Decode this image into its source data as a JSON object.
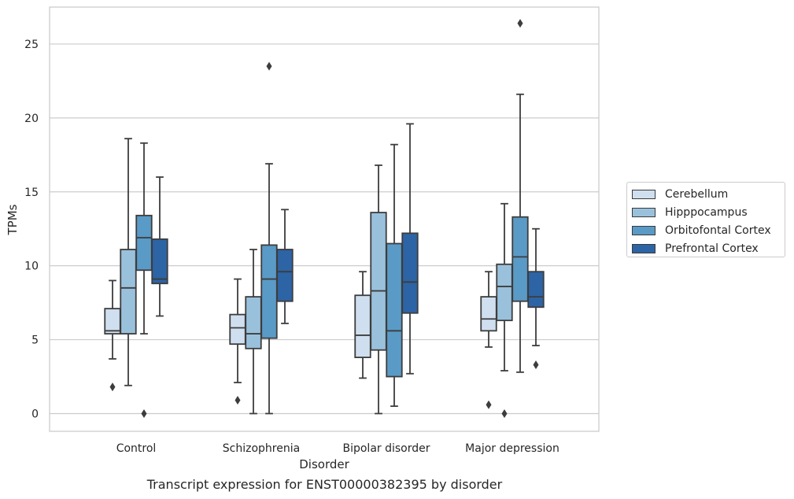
{
  "chart_data": {
    "type": "box",
    "caption": "Transcript expression for ENST00000382395 by disorder",
    "xlabel": "Disorder",
    "ylabel": "TPMs",
    "ylim": [
      -1.2,
      27.5
    ],
    "yticks": [
      0,
      5,
      10,
      15,
      20,
      25
    ],
    "grid": "horizontal",
    "legend_position": "right-center",
    "categories": [
      "Control",
      "Schizophrenia",
      "Bipolar disorder",
      "Major depression"
    ],
    "series": [
      {
        "name": "Cerebellum",
        "color": "#cfdfef",
        "boxes": [
          {
            "whisker_low": 3.7,
            "q1": 5.4,
            "median": 5.6,
            "q3": 7.1,
            "whisker_high": 9.0,
            "outliers": [
              1.8
            ]
          },
          {
            "whisker_low": 2.1,
            "q1": 4.7,
            "median": 5.8,
            "q3": 6.7,
            "whisker_high": 9.1,
            "outliers": [
              0.9
            ]
          },
          {
            "whisker_low": 2.4,
            "q1": 3.8,
            "median": 5.3,
            "q3": 8.0,
            "whisker_high": 9.6,
            "outliers": []
          },
          {
            "whisker_low": 4.5,
            "q1": 5.6,
            "median": 6.4,
            "q3": 7.9,
            "whisker_high": 9.6,
            "outliers": [
              0.6
            ]
          }
        ]
      },
      {
        "name": "Hipppocampus",
        "color": "#9ac1dc",
        "boxes": [
          {
            "whisker_low": 1.9,
            "q1": 5.4,
            "median": 8.5,
            "q3": 11.1,
            "whisker_high": 18.6,
            "outliers": []
          },
          {
            "whisker_low": 0.0,
            "q1": 4.4,
            "median": 5.4,
            "q3": 7.9,
            "whisker_high": 11.1,
            "outliers": []
          },
          {
            "whisker_low": 0.0,
            "q1": 4.3,
            "median": 8.3,
            "q3": 13.6,
            "whisker_high": 16.8,
            "outliers": []
          },
          {
            "whisker_low": 2.9,
            "q1": 6.3,
            "median": 8.6,
            "q3": 10.1,
            "whisker_high": 14.2,
            "outliers": [
              0.0
            ]
          }
        ]
      },
      {
        "name": "Orbitofontal Cortex",
        "color": "#5a9ac6",
        "boxes": [
          {
            "whisker_low": 5.4,
            "q1": 9.7,
            "median": 11.9,
            "q3": 13.4,
            "whisker_high": 18.3,
            "outliers": [
              0.0
            ]
          },
          {
            "whisker_low": 0.0,
            "q1": 5.1,
            "median": 9.1,
            "q3": 11.4,
            "whisker_high": 16.9,
            "outliers": [
              23.5
            ]
          },
          {
            "whisker_low": 0.5,
            "q1": 2.5,
            "median": 5.6,
            "q3": 11.5,
            "whisker_high": 18.2,
            "outliers": []
          },
          {
            "whisker_low": 2.8,
            "q1": 7.6,
            "median": 10.6,
            "q3": 13.3,
            "whisker_high": 21.6,
            "outliers": [
              26.4
            ]
          }
        ]
      },
      {
        "name": "Prefrontal Cortex",
        "color": "#2d64a5",
        "boxes": [
          {
            "whisker_low": 6.6,
            "q1": 8.8,
            "median": 9.1,
            "q3": 11.8,
            "whisker_high": 16.0,
            "outliers": []
          },
          {
            "whisker_low": 6.1,
            "q1": 7.6,
            "median": 9.6,
            "q3": 11.1,
            "whisker_high": 13.8,
            "outliers": []
          },
          {
            "whisker_low": 2.7,
            "q1": 6.8,
            "median": 8.9,
            "q3": 12.2,
            "whisker_high": 19.6,
            "outliers": []
          },
          {
            "whisker_low": 4.6,
            "q1": 7.2,
            "median": 7.9,
            "q3": 9.6,
            "whisker_high": 12.5,
            "outliers": [
              3.3
            ]
          }
        ]
      }
    ]
  }
}
